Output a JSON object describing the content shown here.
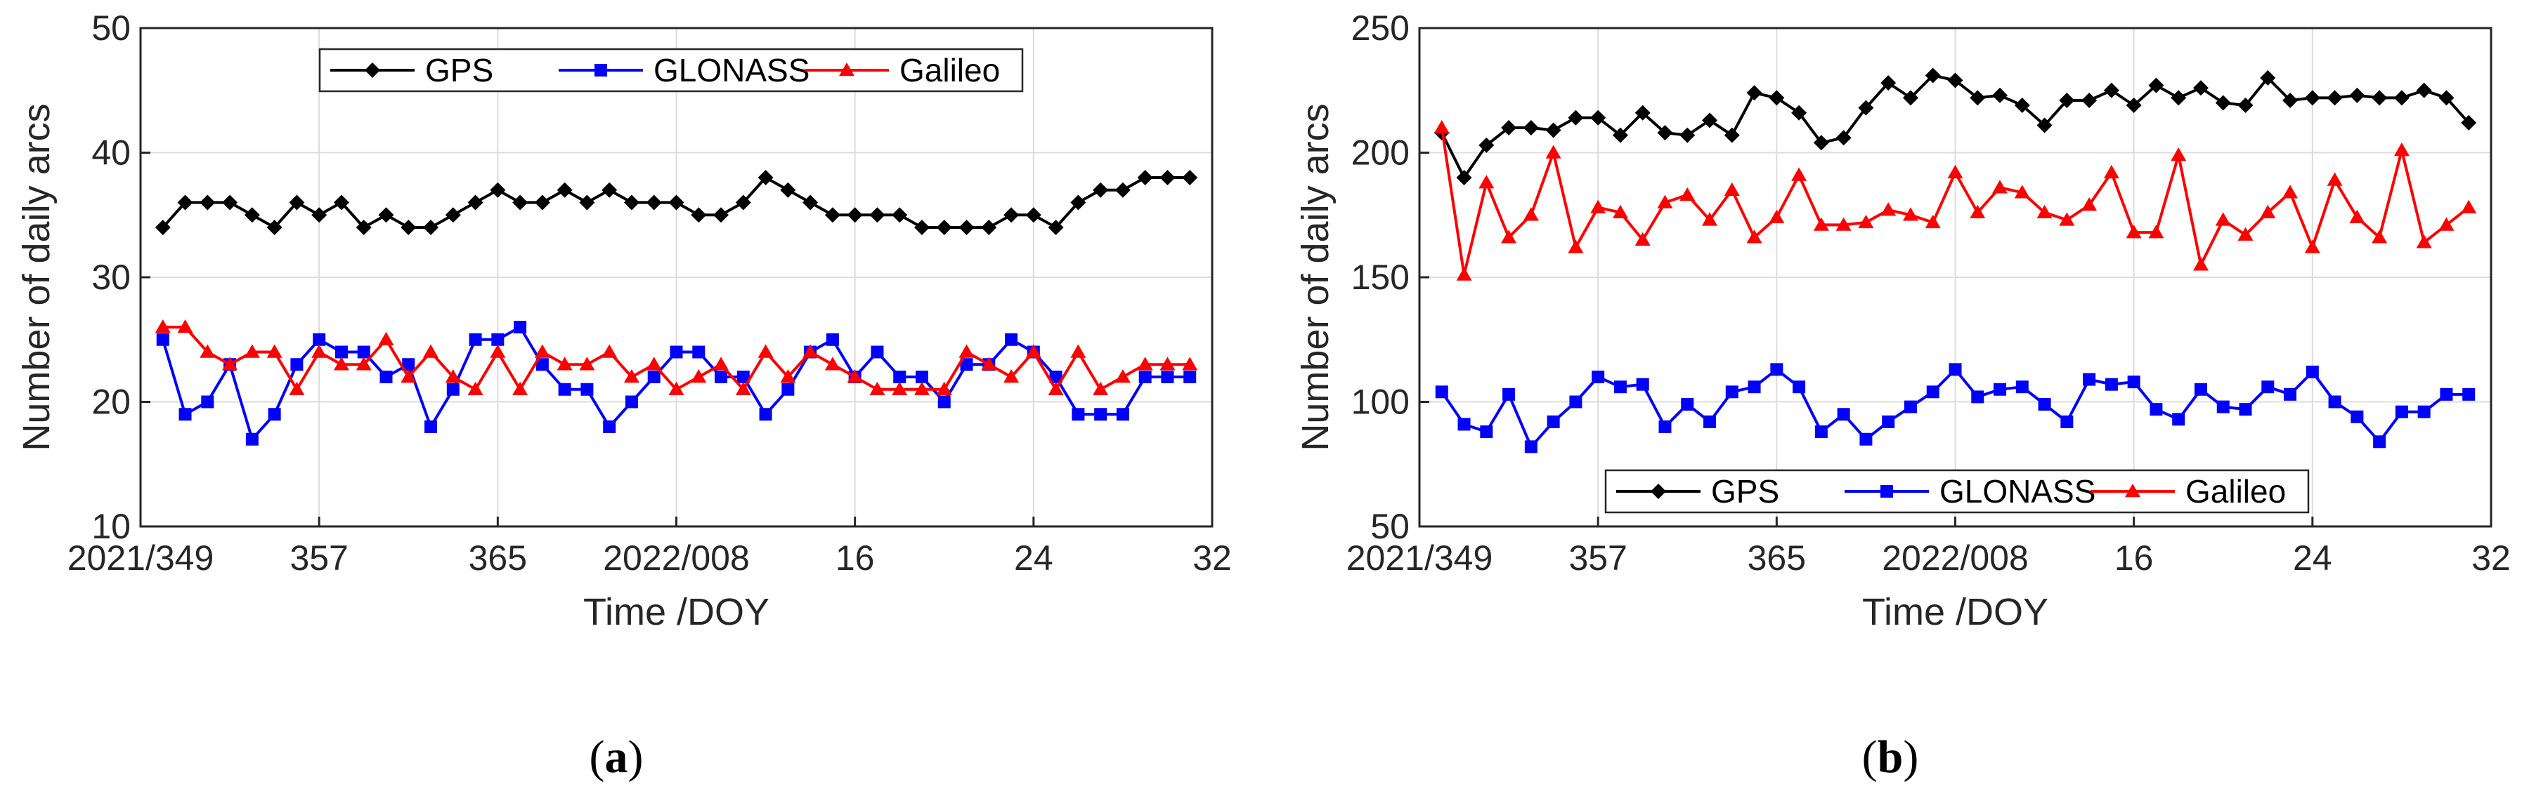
{
  "chart_data": [
    {
      "type": "line",
      "panel_label": "a",
      "xlabel": "Time /DOY",
      "ylabel": "Number of daily arcs",
      "xlim": [
        0,
        48
      ],
      "ylim": [
        10,
        50
      ],
      "grid": true,
      "legend_placement": "top-center",
      "x_ticks": [
        {
          "x": 0,
          "label": "2021/349"
        },
        {
          "x": 8,
          "label": "357"
        },
        {
          "x": 16,
          "label": "365"
        },
        {
          "x": 24,
          "label": "2022/008"
        },
        {
          "x": 32,
          "label": "16"
        },
        {
          "x": 40,
          "label": "24"
        },
        {
          "x": 48,
          "label": "32"
        }
      ],
      "y_ticks": [
        10,
        20,
        30,
        40,
        50
      ],
      "x": [
        1,
        2,
        3,
        4,
        5,
        6,
        7,
        8,
        9,
        10,
        11,
        12,
        13,
        14,
        15,
        16,
        17,
        18,
        19,
        20,
        21,
        22,
        23,
        24,
        25,
        26,
        27,
        28,
        29,
        30,
        31,
        32,
        33,
        34,
        35,
        36,
        37,
        38,
        39,
        40,
        41,
        42,
        43,
        44,
        45,
        46,
        47
      ],
      "series": [
        {
          "name": "GPS",
          "color": "#000000",
          "marker": "diamond",
          "values": [
            34,
            36,
            36,
            36,
            35,
            34,
            36,
            35,
            36,
            34,
            35,
            34,
            34,
            35,
            36,
            37,
            36,
            36,
            37,
            36,
            37,
            36,
            36,
            36,
            35,
            35,
            36,
            38,
            37,
            36,
            35,
            35,
            35,
            35,
            34,
            34,
            34,
            34,
            35,
            35,
            34,
            36,
            37,
            37,
            38,
            38,
            38
          ]
        },
        {
          "name": "GLONASS",
          "color": "#0000ff",
          "marker": "square",
          "values": [
            25,
            19,
            20,
            23,
            17,
            19,
            23,
            25,
            24,
            24,
            22,
            23,
            18,
            21,
            25,
            25,
            26,
            23,
            21,
            21,
            18,
            20,
            22,
            24,
            24,
            22,
            22,
            19,
            21,
            24,
            25,
            22,
            24,
            22,
            22,
            20,
            23,
            23,
            25,
            24,
            22,
            19,
            19,
            19,
            22,
            22,
            22
          ]
        },
        {
          "name": "Galileo",
          "color": "#ff0000",
          "marker": "triangle",
          "values": [
            26,
            26,
            24,
            23,
            24,
            24,
            21,
            24,
            23,
            23,
            25,
            22,
            24,
            22,
            21,
            24,
            21,
            24,
            23,
            23,
            24,
            22,
            23,
            21,
            22,
            23,
            21,
            24,
            22,
            24,
            23,
            22,
            21,
            21,
            21,
            21,
            24,
            23,
            22,
            24,
            21,
            24,
            21,
            22,
            23,
            23,
            23
          ]
        }
      ]
    },
    {
      "type": "line",
      "panel_label": "b",
      "xlabel": "Time /DOY",
      "ylabel": "Number of daily arcs",
      "xlim": [
        0,
        48
      ],
      "ylim": [
        50,
        250
      ],
      "grid": true,
      "legend_placement": "bottom-center",
      "x_ticks": [
        {
          "x": 0,
          "label": "2021/349"
        },
        {
          "x": 8,
          "label": "357"
        },
        {
          "x": 16,
          "label": "365"
        },
        {
          "x": 24,
          "label": "2022/008"
        },
        {
          "x": 32,
          "label": "16"
        },
        {
          "x": 40,
          "label": "24"
        },
        {
          "x": 48,
          "label": "32"
        }
      ],
      "y_ticks": [
        50,
        100,
        150,
        200,
        250
      ],
      "x": [
        1,
        2,
        3,
        4,
        5,
        6,
        7,
        8,
        9,
        10,
        11,
        12,
        13,
        14,
        15,
        16,
        17,
        18,
        19,
        20,
        21,
        22,
        23,
        24,
        25,
        26,
        27,
        28,
        29,
        30,
        31,
        32,
        33,
        34,
        35,
        36,
        37,
        38,
        39,
        40,
        41,
        42,
        43,
        44,
        45,
        46,
        47
      ],
      "series": [
        {
          "name": "GPS",
          "color": "#000000",
          "marker": "diamond",
          "values": [
            208,
            190,
            203,
            210,
            210,
            209,
            214,
            214,
            207,
            216,
            208,
            207,
            213,
            207,
            224,
            222,
            216,
            204,
            206,
            218,
            228,
            222,
            231,
            229,
            222,
            223,
            219,
            211,
            221,
            221,
            225,
            219,
            227,
            222,
            226,
            220,
            219,
            230,
            221,
            222,
            222,
            223,
            222,
            222,
            225,
            222,
            212
          ]
        },
        {
          "name": "GLONASS",
          "color": "#0000ff",
          "marker": "square",
          "values": [
            104,
            91,
            88,
            103,
            82,
            92,
            100,
            110,
            106,
            107,
            90,
            99,
            92,
            104,
            106,
            113,
            106,
            88,
            95,
            85,
            92,
            98,
            104,
            113,
            102,
            105,
            106,
            99,
            92,
            109,
            107,
            108,
            97,
            93,
            105,
            98,
            97,
            106,
            103,
            112,
            100,
            94,
            84,
            96,
            96,
            103,
            103
          ]
        },
        {
          "name": "Galileo",
          "color": "#ff0000",
          "marker": "triangle",
          "values": [
            210,
            151,
            188,
            166,
            175,
            200,
            162,
            178,
            176,
            165,
            180,
            183,
            173,
            185,
            166,
            174,
            191,
            171,
            171,
            172,
            177,
            175,
            172,
            192,
            176,
            186,
            184,
            176,
            173,
            179,
            192,
            168,
            168,
            199,
            155,
            173,
            167,
            176,
            184,
            162,
            189,
            174,
            166,
            201,
            164,
            171,
            178
          ]
        }
      ]
    }
  ]
}
